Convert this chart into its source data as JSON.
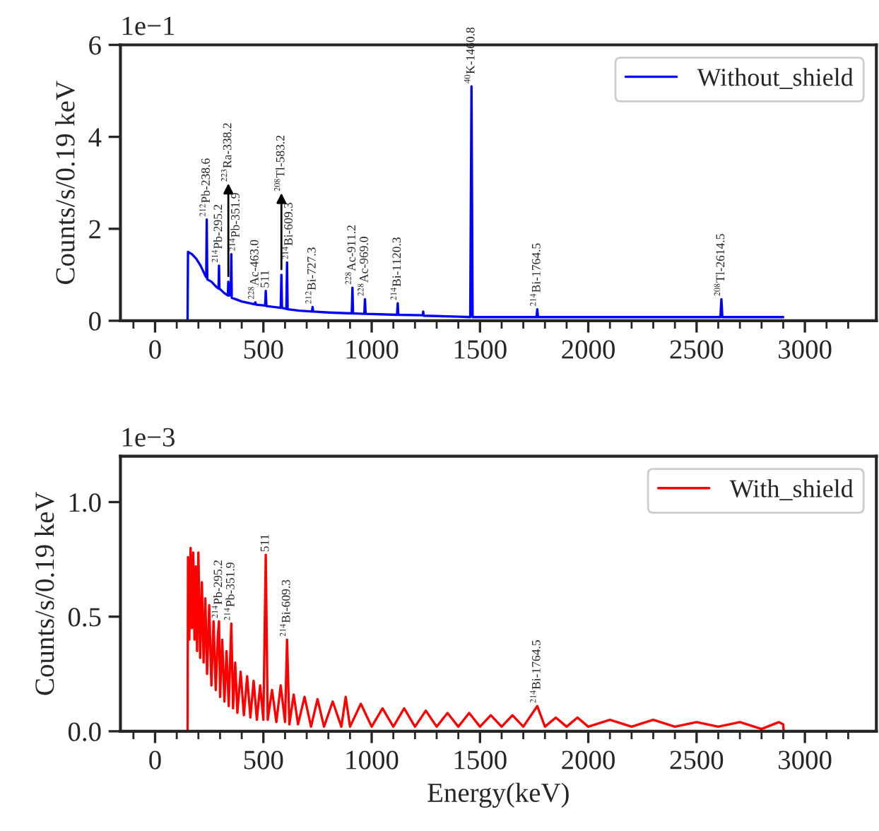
{
  "chart_data": [
    {
      "type": "line",
      "ylabel": "Counts/s/0.19 keV",
      "legend": "top right",
      "grid": false,
      "xlim": [
        -160,
        3330
      ],
      "ylim": [
        0,
        6
      ],
      "xticks": [
        {
          "value": -100,
          "label": null
        },
        0,
        {
          "value": 100,
          "label": null
        },
        {
          "value": 200,
          "label": null
        },
        {
          "value": 300,
          "label": null
        },
        {
          "value": 400,
          "label": null
        },
        500,
        {
          "value": 600,
          "label": null
        },
        {
          "value": 700,
          "label": null
        },
        {
          "value": 800,
          "label": null
        },
        {
          "value": 900,
          "label": null
        },
        1000,
        {
          "value": 1100,
          "label": null
        },
        {
          "value": 1200,
          "label": null
        },
        {
          "value": 1300,
          "label": null
        },
        {
          "value": 1400,
          "label": null
        },
        1500,
        {
          "value": 1600,
          "label": null
        },
        {
          "value": 1700,
          "label": null
        },
        {
          "value": 1800,
          "label": null
        },
        {
          "value": 1900,
          "label": null
        },
        2000,
        {
          "value": 2100,
          "label": null
        },
        {
          "value": 2200,
          "label": null
        },
        {
          "value": 2300,
          "label": null
        },
        {
          "value": 2400,
          "label": null
        },
        2500,
        {
          "value": 2600,
          "label": null
        },
        {
          "value": 2700,
          "label": null
        },
        {
          "value": 2800,
          "label": null
        },
        {
          "value": 2900,
          "label": null
        },
        3000,
        {
          "value": 3100,
          "label": null
        },
        {
          "value": 3200,
          "label": null
        }
      ],
      "yticks": [
        0,
        2,
        4,
        6
      ],
      "series": [
        {
          "name": "Without_shield",
          "color": "#0000ff",
          "x": [
            150,
            152,
            170,
            190,
            210,
            230,
            236,
            238.6,
            241,
            260,
            280,
            293,
            295.2,
            297,
            320,
            336,
            338.2,
            341,
            349,
            351.9,
            354,
            400,
            460,
            463,
            466,
            508,
            511,
            514,
            580,
            583.2,
            586,
            606,
            609.3,
            612,
            665,
            724,
            727.3,
            730,
            800,
            908,
            911.2,
            914,
            966,
            969,
            972,
            1117,
            1120.3,
            1123,
            1236,
            1238,
            1240,
            1400,
            1455,
            1460.8,
            1466,
            1600,
            1761,
            1764.5,
            1768,
            2000,
            2200,
            2610,
            2614.5,
            2619,
            2900
          ],
          "values": [
            0,
            1.5,
            1.45,
            1.35,
            1.2,
            1.0,
            0.95,
            2.2,
            0.9,
            0.85,
            0.75,
            0.7,
            1.2,
            0.7,
            0.6,
            0.55,
            0.85,
            0.55,
            0.55,
            1.45,
            0.5,
            0.42,
            0.36,
            0.4,
            0.35,
            0.33,
            0.65,
            0.32,
            0.28,
            1.0,
            0.28,
            0.26,
            1.27,
            0.25,
            0.22,
            0.2,
            0.3,
            0.2,
            0.18,
            0.16,
            0.72,
            0.16,
            0.15,
            0.47,
            0.15,
            0.13,
            0.38,
            0.13,
            0.12,
            0.2,
            0.11,
            0.09,
            0.08,
            5.1,
            0.08,
            0.08,
            0.08,
            0.25,
            0.08,
            0.08,
            0.08,
            0.08,
            0.47,
            0.08,
            0.08
          ]
        }
      ],
      "annotations": [
        "1e−1",
        {
          "text": "$^{212}$Pb-238.6",
          "x": 238.6,
          "y": 2.2
        },
        {
          "text": "$^{214}$Pb-295.2",
          "x": 295.2,
          "y": 1.2
        },
        {
          "text": "$^{223}$Ra-338.2",
          "x": 338.2,
          "y": 0.85
        },
        {
          "text": "$^{214}$Pb-351.9",
          "x": 351.9,
          "y": 1.45
        },
        {
          "text": "$^{228}$Ac-463.0",
          "x": 463,
          "y": 0.4
        },
        {
          "text": "511",
          "x": 511,
          "y": 0.65
        },
        {
          "text": "$^{208}$Tl-583.2",
          "x": 583.2,
          "y": 1.0
        },
        {
          "text": "$^{214}$Bi-609.3",
          "x": 609.3,
          "y": 1.27
        },
        {
          "text": "$^{212}$Bi-727.3",
          "x": 727.3,
          "y": 0.3
        },
        {
          "text": "$^{228}$Ac-911.2",
          "x": 911.2,
          "y": 0.72
        },
        {
          "text": "$^{228}$Ac-969.0",
          "x": 969,
          "y": 0.47
        },
        {
          "text": "$^{214}$Bi-1120.3",
          "x": 1120.3,
          "y": 0.38
        },
        {
          "text": "$^{40}$K-1460.8",
          "x": 1460.8,
          "y": 5.1
        },
        {
          "text": "$^{214}$Bi-1764.5",
          "x": 1764.5,
          "y": 0.25
        },
        {
          "text": "$^{208}$Tl-2614.5",
          "x": 2614.5,
          "y": 0.47
        }
      ]
    },
    {
      "type": "line",
      "ylabel": "Counts/s/0.19 keV",
      "xlabel": "Energy(keV)",
      "legend": "top right",
      "grid": false,
      "xlim": [
        -160,
        3330
      ],
      "ylim": [
        0,
        1.2
      ],
      "xticks": [
        {
          "value": -100,
          "label": null
        },
        0,
        {
          "value": 100,
          "label": null
        },
        {
          "value": 200,
          "label": null
        },
        {
          "value": 300,
          "label": null
        },
        {
          "value": 400,
          "label": null
        },
        500,
        {
          "value": 600,
          "label": null
        },
        {
          "value": 700,
          "label": null
        },
        {
          "value": 800,
          "label": null
        },
        {
          "value": 900,
          "label": null
        },
        1000,
        {
          "value": 1100,
          "label": null
        },
        {
          "value": 1200,
          "label": null
        },
        {
          "value": 1300,
          "label": null
        },
        {
          "value": 1400,
          "label": null
        },
        1500,
        {
          "value": 1600,
          "label": null
        },
        {
          "value": 1700,
          "label": null
        },
        {
          "value": 1800,
          "label": null
        },
        {
          "value": 1900,
          "label": null
        },
        2000,
        {
          "value": 2100,
          "label": null
        },
        {
          "value": 2200,
          "label": null
        },
        {
          "value": 2300,
          "label": null
        },
        {
          "value": 2400,
          "label": null
        },
        2500,
        {
          "value": 2600,
          "label": null
        },
        {
          "value": 2700,
          "label": null
        },
        {
          "value": 2800,
          "label": null
        },
        {
          "value": 2900,
          "label": null
        },
        3000,
        {
          "value": 3100,
          "label": null
        },
        {
          "value": 3200,
          "label": null
        }
      ],
      "yticks": [
        {
          "value": 0,
          "label": "0.0"
        },
        {
          "value": 0.5,
          "label": "0.5"
        },
        {
          "value": 1.0,
          "label": "1.0"
        }
      ],
      "series": [
        {
          "name": "With_shield",
          "color": "#ff0000",
          "x": [
            150,
            152,
            158,
            164,
            170,
            176,
            182,
            188,
            194,
            200,
            208,
            216,
            224,
            232,
            240,
            250,
            260,
            270,
            280,
            290,
            295.2,
            300,
            310,
            320,
            330,
            340,
            351.9,
            360,
            370,
            380,
            395,
            410,
            425,
            440,
            455,
            470,
            485,
            500,
            511,
            520,
            540,
            560,
            580,
            600,
            609.3,
            620,
            640,
            660,
            690,
            720,
            750,
            780,
            820,
            860,
            880,
            900,
            950,
            1000,
            1050,
            1100,
            1150,
            1200,
            1250,
            1300,
            1350,
            1400,
            1450,
            1500,
            1550,
            1600,
            1650,
            1700,
            1764.5,
            1800,
            1850,
            1900,
            1950,
            2000,
            2100,
            2200,
            2300,
            2400,
            2500,
            2600,
            2700,
            2800,
            2880,
            2900,
            2902
          ],
          "values": [
            0,
            0.76,
            0.4,
            0.8,
            0.45,
            0.78,
            0.4,
            0.72,
            0.35,
            0.78,
            0.32,
            0.65,
            0.3,
            0.58,
            0.25,
            0.55,
            0.2,
            0.48,
            0.18,
            0.42,
            0.48,
            0.15,
            0.4,
            0.13,
            0.35,
            0.11,
            0.47,
            0.1,
            0.3,
            0.08,
            0.26,
            0.07,
            0.24,
            0.06,
            0.22,
            0.05,
            0.2,
            0.05,
            0.77,
            0.05,
            0.18,
            0.04,
            0.2,
            0.04,
            0.4,
            0.03,
            0.16,
            0.03,
            0.15,
            0.02,
            0.14,
            0.02,
            0.13,
            0.02,
            0.15,
            0.02,
            0.12,
            0.02,
            0.1,
            0.02,
            0.1,
            0.02,
            0.09,
            0.02,
            0.08,
            0.02,
            0.08,
            0.02,
            0.07,
            0.02,
            0.07,
            0.02,
            0.11,
            0.02,
            0.06,
            0.02,
            0.06,
            0.02,
            0.05,
            0.02,
            0.05,
            0.02,
            0.04,
            0.02,
            0.04,
            0.01,
            0.04,
            0.03,
            0
          ]
        }
      ],
      "annotations": [
        "1e−3",
        {
          "text": "$^{214}$Pb-295.2",
          "x": 295.2,
          "y": 0.48
        },
        {
          "text": "$^{214}$Pb-351.9",
          "x": 351.9,
          "y": 0.47
        },
        {
          "text": "511",
          "x": 511,
          "y": 0.77
        },
        {
          "text": "$^{214}$Bi-609.3",
          "x": 609.3,
          "y": 0.4
        },
        {
          "text": "$^{214}$Bi-1764.5",
          "x": 1764.5,
          "y": 0.11
        }
      ]
    }
  ]
}
